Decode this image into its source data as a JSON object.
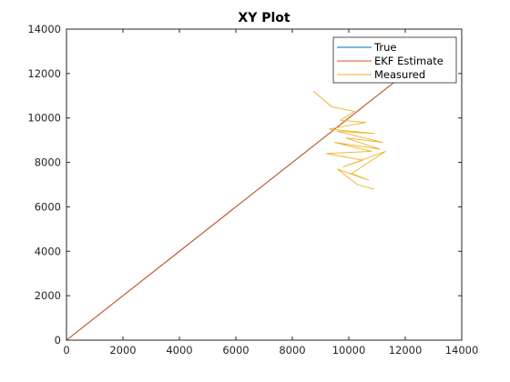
{
  "chart_data": {
    "type": "line",
    "title": "XY Plot",
    "xlabel": "",
    "ylabel": "",
    "xlim": [
      0,
      14000
    ],
    "ylim": [
      0,
      14000
    ],
    "xticks": [
      0,
      2000,
      4000,
      6000,
      8000,
      10000,
      12000,
      14000
    ],
    "yticks": [
      0,
      2000,
      4000,
      6000,
      8000,
      10000,
      12000,
      14000
    ],
    "grid": false,
    "legend_position": "top-right",
    "series": [
      {
        "name": "True",
        "color": "#0072BD",
        "x": [
          0,
          2000,
          4000,
          6000,
          8000,
          10000,
          11650
        ],
        "y": [
          0,
          2000,
          4000,
          6000,
          8000,
          10000,
          11650
        ]
      },
      {
        "name": "EKF Estimate",
        "color": "#D95319",
        "x": [
          0,
          2000,
          4000,
          6000,
          8000,
          10000,
          11650
        ],
        "y": [
          0,
          2000,
          4000,
          6000,
          8000,
          10000,
          11650
        ]
      },
      {
        "name": "Measured",
        "color": "#EDB120",
        "x": [
          8750,
          9400,
          10200,
          9700,
          10600,
          9300,
          10900,
          9600,
          11200,
          9900,
          11100,
          9500,
          10800,
          9200,
          10500,
          9800,
          11300,
          10100,
          10700,
          9600,
          10300,
          10900
        ],
        "y": [
          11200,
          10500,
          10300,
          9900,
          9800,
          9500,
          9300,
          9400,
          8900,
          9100,
          8600,
          8900,
          8500,
          8400,
          8100,
          7800,
          8500,
          7500,
          7200,
          7700,
          7000,
          6800
        ]
      }
    ]
  }
}
